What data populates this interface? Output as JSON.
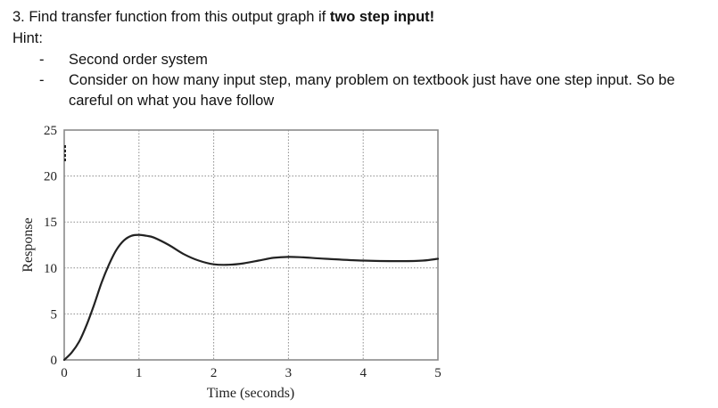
{
  "question": {
    "prefix": "3. Find transfer function from this output graph if ",
    "bold": "two step input!",
    "hint_label": "Hint:",
    "bullets": [
      {
        "marker": "-",
        "text": "Second order system"
      },
      {
        "marker": "-",
        "text": "Consider on how many input step, many problem on textbook just have one step input. So be"
      },
      {
        "marker": "",
        "text": "careful on what you have follow"
      }
    ]
  },
  "chart_data": {
    "type": "line",
    "title": "",
    "xlabel": "Time (seconds)",
    "ylabel": "Response",
    "xlim": [
      0,
      5
    ],
    "ylim": [
      0,
      25
    ],
    "xticks": [
      "0",
      "1",
      "2",
      "3",
      "4",
      "5"
    ],
    "yticks": [
      "0",
      "5",
      "10",
      "15",
      "20",
      "25"
    ],
    "grid": true,
    "legend": null,
    "series": [
      {
        "name": "Response",
        "x": [
          0,
          0.1,
          0.2,
          0.3,
          0.4,
          0.5,
          0.6,
          0.7,
          0.8,
          0.9,
          1.0,
          1.1,
          1.2,
          1.4,
          1.6,
          1.8,
          2.0,
          2.2,
          2.4,
          2.6,
          2.8,
          3.0,
          3.2,
          3.5,
          4.0,
          4.5,
          4.8,
          5.0
        ],
        "values": [
          0,
          0.8,
          2.0,
          3.8,
          6.0,
          8.4,
          10.4,
          12.0,
          13.0,
          13.5,
          13.6,
          13.5,
          13.3,
          12.5,
          11.5,
          10.8,
          10.4,
          10.35,
          10.5,
          10.8,
          11.1,
          11.2,
          11.15,
          11.0,
          10.8,
          10.75,
          10.8,
          11.0
        ]
      }
    ],
    "annotations": [
      {
        "type": "dashed-marker",
        "x": 0,
        "y_range": [
          21.5,
          23.5
        ]
      }
    ]
  }
}
